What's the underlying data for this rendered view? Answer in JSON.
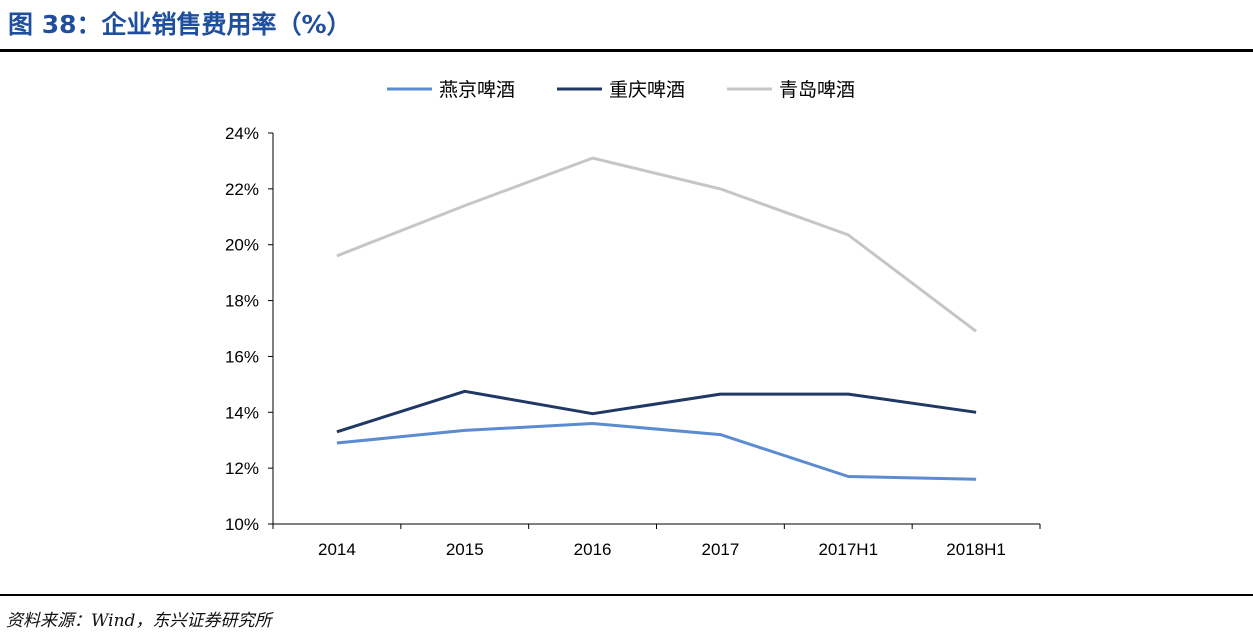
{
  "figure": {
    "title": "图 38：企业销售费用率（%）",
    "source": "资料来源：Wind，东兴证券研究所"
  },
  "colors": {
    "title": "#1f4e9c",
    "axis": "#000000",
    "yanjing": "#5b8bd0",
    "chongqing": "#1f3864",
    "tsingtao": "#c6c6c6"
  },
  "chart_data": {
    "type": "line",
    "title": "",
    "xlabel": "",
    "ylabel": "",
    "categories": [
      "2014",
      "2015",
      "2016",
      "2017",
      "2017H1",
      "2018H1"
    ],
    "ylim": [
      0.1,
      0.24
    ],
    "yticks": [
      0.1,
      0.12,
      0.14,
      0.16,
      0.18,
      0.2,
      0.22,
      0.24
    ],
    "ytick_labels": [
      "10%",
      "12%",
      "14%",
      "16%",
      "18%",
      "20%",
      "22%",
      "24%"
    ],
    "grid": false,
    "legend_position": "top-center",
    "series": [
      {
        "name": "燕京啤酒",
        "color_key": "yanjing",
        "values": [
          0.129,
          0.1335,
          0.136,
          0.132,
          0.117,
          0.116
        ]
      },
      {
        "name": "重庆啤酒",
        "color_key": "chongqing",
        "values": [
          0.133,
          0.1475,
          0.1395,
          0.1465,
          0.1465,
          0.14
        ]
      },
      {
        "name": "青岛啤酒",
        "color_key": "tsingtao",
        "values": [
          0.196,
          0.214,
          0.231,
          0.22,
          0.2035,
          0.169
        ]
      }
    ]
  }
}
